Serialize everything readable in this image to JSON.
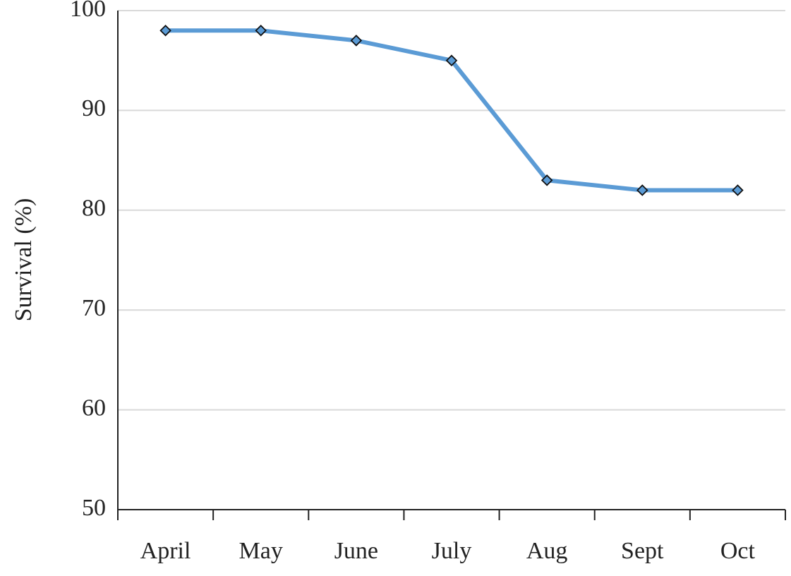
{
  "chart_data": {
    "type": "line",
    "y_label": "Survival (%)",
    "categories": [
      "April",
      "May",
      "June",
      "July",
      "Aug",
      "Sept",
      "Oct"
    ],
    "values": [
      98,
      98,
      97,
      95,
      83,
      82,
      82
    ],
    "color": "#5b9bd5",
    "ylim": [
      50,
      100
    ],
    "yticks": [
      50,
      60,
      70,
      80,
      90,
      100
    ],
    "grid": true
  }
}
